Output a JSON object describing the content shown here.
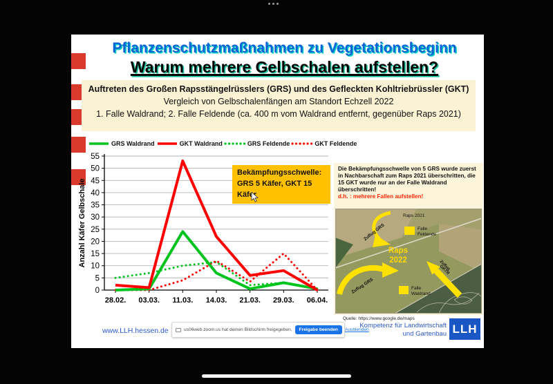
{
  "window": {
    "menu_dots_icon": "drag-handle-dots"
  },
  "slide": {
    "title_line1": "Pflanzenschutzmaßnahmen zu Vegetationsbeginn",
    "title_line2": "Warum mehrere Gelbschalen aufstellen?",
    "info_box": {
      "line1": "Auftreten des Großen Rapsstängelrüsslers (GRS) und des Gefleckten Kohltriebrüssler (GKT)",
      "line2": "Vergleich von Gelbschalenfängen am Standort Echzell 2022",
      "line3": "1. Falle Waldrand;  2. Falle Feldende (ca. 400 m vom Waldrand entfernt, gegenüber Raps 2021)"
    },
    "threshold_box": {
      "line1": "Bekämpfungsschwelle:",
      "line2": "GRS 5 Käfer,  GKT 15 Käfer",
      "bg_color": "#FFC000"
    },
    "note_box": {
      "text": "Die Bekämpfungsschwelle von 5 GRS wurde zuerst in Nachbarschaft zum Raps 2021 überschritten, die 15 GKT wurde nur an der Falle Waldrand überschritten!",
      "emphasis": "d.h. : mehrere Fallen aufstellen!",
      "emphasis_color": "#ff2400"
    },
    "map": {
      "raps_2021": "Raps 2021",
      "zuflug_grs_top": "Zuflug GRS",
      "falle_feldende_line1": "Falle",
      "falle_feldende_line2": "Feldende",
      "raps_2022_line1": "Raps",
      "raps_2022_line2": "2022",
      "zuflug_grs_bottom": "Zuflug GRS",
      "falle_waldrand_line1": "Falle",
      "falle_waldrand_line2": "Waldrand",
      "zuflug_gktr_line1": "Zuflug",
      "zuflug_gktr_line2": "GKTR",
      "source": "Quelle: https://www.google.de/maps"
    },
    "footer": {
      "website": "www.LLH.hessen.de",
      "org_line1": "Kompetenz für Landwirtschaft",
      "org_line2": "und Gartenbau",
      "logo_text": "LLH",
      "brand_color": "#1a56c4"
    }
  },
  "share_notification": {
    "message": "us06web.zoom.us hat deinen Bildschirm freigegeben.",
    "button_label": "Freigabe beenden",
    "link_label": "Ausblenden"
  },
  "chart_data": {
    "type": "line",
    "title": "",
    "categories": [
      "28.02.",
      "03.03.",
      "11.03.",
      "14.03.",
      "21.03.",
      "29.03.",
      "06.04."
    ],
    "series": [
      {
        "name": "GRS Waldrand",
        "color": "#00c41e",
        "line_style": "solid",
        "values": [
          0,
          0.5,
          24,
          7,
          0.5,
          3,
          0.5
        ]
      },
      {
        "name": "GKT Waldrand",
        "color": "#ff0000",
        "line_style": "solid",
        "values": [
          2,
          1,
          53,
          22,
          6,
          8,
          0
        ]
      },
      {
        "name": "GRS Feldende",
        "color": "#00c41e",
        "line_style": "dotted",
        "values": [
          5,
          7,
          10,
          11.5,
          2,
          3,
          0.5
        ]
      },
      {
        "name": "GKT Feldende",
        "color": "#ff0000",
        "line_style": "dotted",
        "values": [
          0,
          0,
          4,
          12,
          3.5,
          15,
          0
        ]
      }
    ],
    "xlabel": "",
    "ylabel": "Anzahl Käfer Gelbschale",
    "ylim": [
      0,
      55
    ],
    "ytick_step": 5,
    "grid": true,
    "legend_position": "top"
  }
}
